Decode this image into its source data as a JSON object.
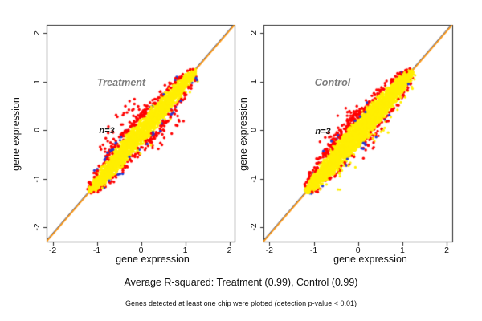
{
  "figure": {
    "caption_r_squared": "Average R-squared: Treatment (0.99), Control (0.99)",
    "caption_note": "Genes detected at least one chip were plotted (detection p-value < 0.01)"
  },
  "colors": {
    "dense_gene_points": "#FFEF00",
    "edge_gene_points": "#FF0000",
    "rare_gene_points": "#2438D2",
    "fit_line": "#FF9100",
    "identity_line": "#44537E",
    "axis_box": "#2b2b2b",
    "tick_text": "#111111",
    "title_text": "#7e7e7e"
  },
  "chart_data": [
    {
      "type": "scatter",
      "title": "Treatment",
      "annotation": "n=3",
      "xlabel": "gene expression",
      "ylabel": "gene expression",
      "xlim": [
        -2.2,
        2.2
      ],
      "ylim": [
        -2.2,
        2.2
      ],
      "xticks": [
        -2,
        -1,
        0,
        1,
        2
      ],
      "yticks": [
        -2,
        -1,
        0,
        1,
        2
      ],
      "r_squared": 0.99,
      "diagonal_line": true,
      "cloud": {
        "seed": 20,
        "x_extent": [
          -1.16,
          1.23
        ],
        "core": {
          "color": "yellow",
          "n": 2600,
          "halfwidth": 0.2
        },
        "edge_red": {
          "n": 290,
          "upper_fraction": 0.52
        },
        "sparse_blue": {
          "n": 46
        },
        "upper_red_outliers": {
          "n": 55,
          "x_range": [
            -0.6,
            0.35
          ],
          "max_offset": 0.45
        },
        "lower_red_outliers": {
          "n": 32,
          "x_range": [
            -0.15,
            0.6
          ],
          "max_offset": 0.33
        },
        "below_yellow_outliers": {
          "n": 6,
          "max_offset": 0.12
        }
      }
    },
    {
      "type": "scatter",
      "title": "Control",
      "annotation": "n=3",
      "xlabel": "gene expression",
      "ylabel": "gene expression",
      "xlim": [
        -2.2,
        2.2
      ],
      "ylim": [
        -2.2,
        2.2
      ],
      "xticks": [
        -2,
        -1,
        0,
        1,
        2
      ],
      "yticks": [
        -2,
        -1,
        0,
        1,
        2
      ],
      "r_squared": 0.99,
      "diagonal_line": true,
      "cloud": {
        "seed": 77,
        "x_extent": [
          -1.16,
          1.22
        ],
        "core": {
          "color": "yellow",
          "n": 3300,
          "halfwidth": 0.23
        },
        "edge_red": {
          "n": 300,
          "upper_fraction": 0.72
        },
        "sparse_blue": {
          "n": 30
        },
        "upper_red_outliers": {
          "n": 34,
          "x_range": [
            -0.7,
            0.3
          ],
          "max_offset": 0.34
        },
        "lower_red_outliers": {
          "n": 12,
          "x_range": [
            -0.3,
            0.4
          ],
          "max_offset": 0.25
        },
        "below_yellow_outliers": {
          "n": 30,
          "max_offset": 0.3
        }
      }
    }
  ]
}
